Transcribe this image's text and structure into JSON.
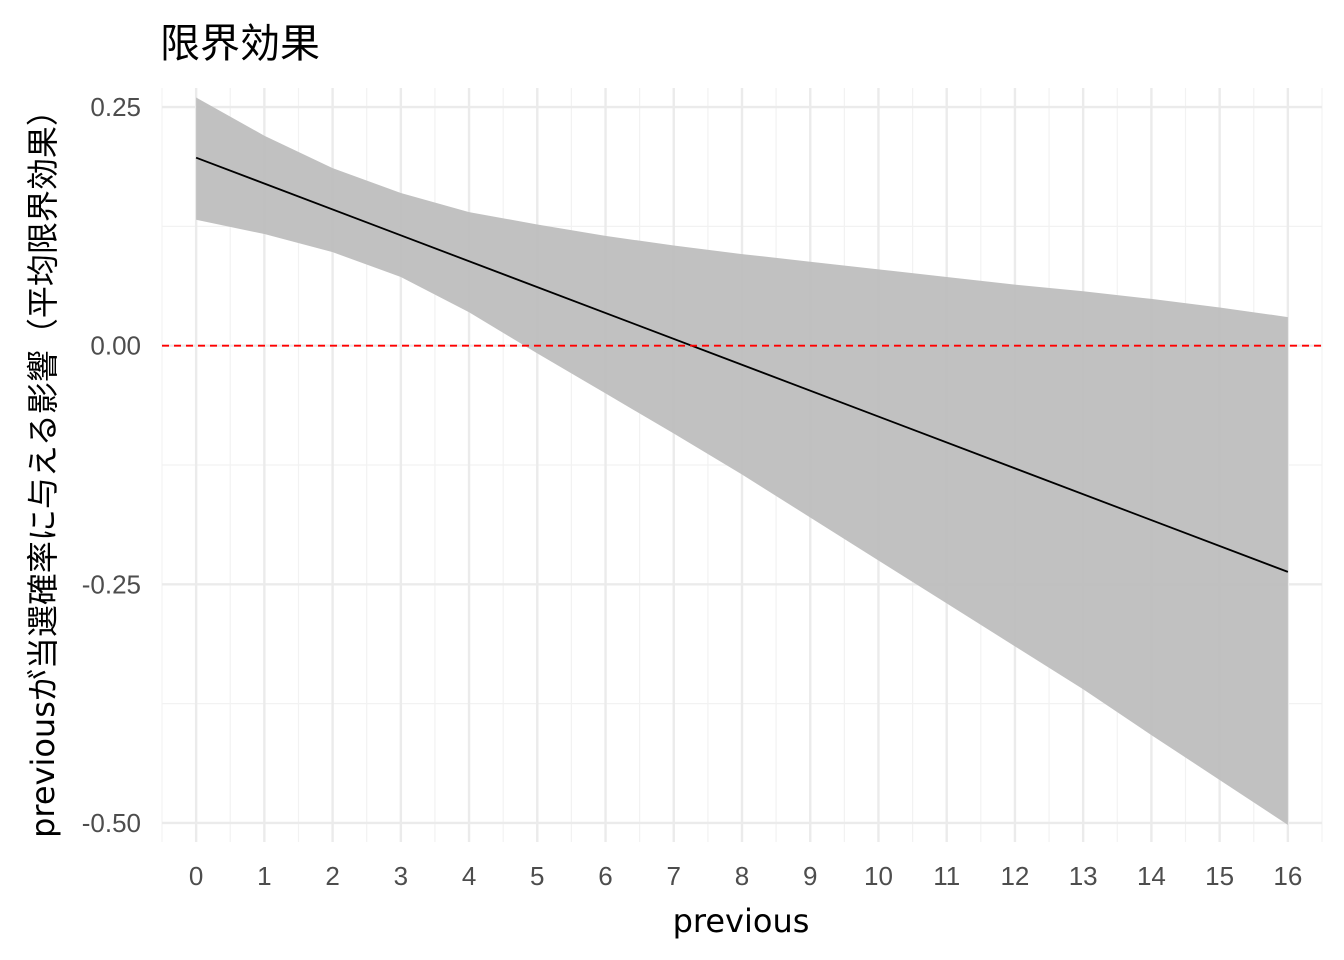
{
  "chart_data": {
    "type": "line",
    "title": "限界効果",
    "xlabel": "previous",
    "ylabel": "previousが当選確率に与える影響（平均限界効果）",
    "xlim": [
      -0.5,
      16.5
    ],
    "ylim": [
      -0.52,
      0.27
    ],
    "x_ticks": [
      0,
      1,
      2,
      3,
      4,
      5,
      6,
      7,
      8,
      9,
      10,
      11,
      12,
      13,
      14,
      15,
      16
    ],
    "y_ticks": [
      0.25,
      0.0,
      -0.25,
      -0.5
    ],
    "y_tick_labels": [
      "0.25",
      "0.00",
      "-0.25",
      "-0.50"
    ],
    "grid": true,
    "reference_line": {
      "y": 0,
      "style": "dashed",
      "color": "#ff0000"
    },
    "series": [
      {
        "type": "line",
        "color": "#000000",
        "x": [
          0,
          16
        ],
        "y": [
          0.197,
          -0.237
        ]
      },
      {
        "type": "ribbon",
        "fill": "#bebebe",
        "x": [
          0,
          1,
          2,
          3,
          4,
          5,
          6,
          7,
          8,
          9,
          10,
          11,
          12,
          13,
          14,
          15,
          16
        ],
        "upper": [
          0.26,
          0.22,
          0.186,
          0.16,
          0.14,
          0.127,
          0.115,
          0.105,
          0.096,
          0.088,
          0.08,
          0.072,
          0.064,
          0.057,
          0.049,
          0.04,
          0.03
        ],
        "lower": [
          0.132,
          0.117,
          0.098,
          0.072,
          0.035,
          -0.008,
          -0.05,
          -0.092,
          -0.135,
          -0.18,
          -0.225,
          -0.27,
          -0.315,
          -0.36,
          -0.408,
          -0.455,
          -0.502
        ]
      }
    ]
  }
}
